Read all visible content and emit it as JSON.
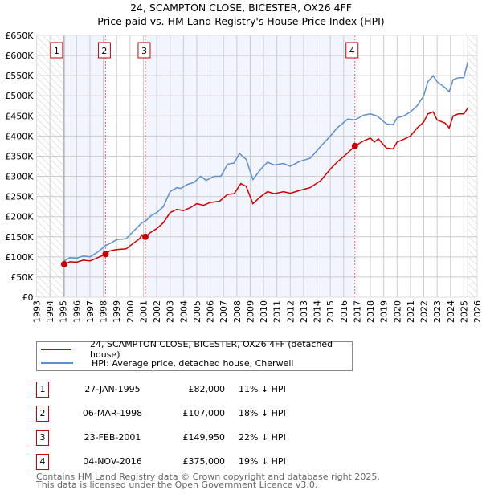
{
  "title": "24, SCAMPTON CLOSE, BICESTER, OX26 4FF",
  "subtitle": "Price paid vs. HM Land Registry's House Price Index (HPI)",
  "chart_data": {
    "type": "line",
    "title": "24, SCAMPTON CLOSE, BICESTER, OX26 4FF",
    "subtitle": "Price paid vs. HM Land Registry's House Price Index (HPI)",
    "xlim": [
      1993,
      2026
    ],
    "ylim": [
      0,
      650000
    ],
    "grid": true,
    "x_ticks": [
      "1993",
      "1994",
      "1995",
      "1996",
      "1997",
      "1998",
      "1999",
      "2000",
      "2001",
      "2002",
      "2003",
      "2004",
      "2005",
      "2006",
      "2007",
      "2008",
      "2009",
      "2010",
      "2011",
      "2012",
      "2013",
      "2014",
      "2015",
      "2016",
      "2017",
      "2018",
      "2019",
      "2020",
      "2021",
      "2022",
      "2023",
      "2024",
      "2025",
      "2026"
    ],
    "y_ticks": [
      {
        "v": 0,
        "label": "£0"
      },
      {
        "v": 50000,
        "label": "£50K"
      },
      {
        "v": 100000,
        "label": "£100K"
      },
      {
        "v": 150000,
        "label": "£150K"
      },
      {
        "v": 200000,
        "label": "£200K"
      },
      {
        "v": 250000,
        "label": "£250K"
      },
      {
        "v": 300000,
        "label": "£300K"
      },
      {
        "v": 350000,
        "label": "£350K"
      },
      {
        "v": 400000,
        "label": "£400K"
      },
      {
        "v": 450000,
        "label": "£450K"
      },
      {
        "v": 500000,
        "label": "£500K"
      },
      {
        "v": 550000,
        "label": "£550K"
      },
      {
        "v": 600000,
        "label": "£600K"
      },
      {
        "v": 650000,
        "label": "£650K"
      }
    ],
    "data_start": 1995.07,
    "data_end": 2025.3,
    "series": [
      {
        "name": "24, SCAMPTON CLOSE, BICESTER, OX26 4FF (detached house)",
        "color": "#cc0000",
        "x": [
          1995.07,
          1995.5,
          1996,
          1996.5,
          1997,
          1997.5,
          1998.17,
          1998.5,
          1999,
          1999.7,
          2000.3,
          2000.7,
          2000.9,
          2001.15,
          2001.5,
          2002,
          2002.5,
          2003,
          2003.5,
          2004,
          2004.5,
          2005,
          2005.5,
          2006,
          2006.7,
          2007.3,
          2007.8,
          2008.3,
          2008.7,
          2009.2,
          2009.8,
          2010.3,
          2010.8,
          2011.5,
          2012,
          2012.7,
          2013.5,
          2014.3,
          2015,
          2015.5,
          2016.2,
          2016.84,
          2017.5,
          2018,
          2018.3,
          2018.6,
          2019.2,
          2019.7,
          2020,
          2020.5,
          2021,
          2021.5,
          2022,
          2022.3,
          2022.7,
          2023,
          2023.6,
          2023.9,
          2024.2,
          2024.6,
          2025,
          2025.3
        ],
        "y": [
          82000,
          88000,
          87000,
          92000,
          90000,
          97000,
          107000,
          115000,
          118000,
          120000,
          135000,
          145000,
          155000,
          149950,
          160000,
          170000,
          185000,
          210000,
          218000,
          215000,
          222000,
          232000,
          228000,
          235000,
          238000,
          255000,
          257000,
          282000,
          275000,
          232000,
          250000,
          262000,
          257000,
          262000,
          258000,
          265000,
          272000,
          290000,
          318000,
          335000,
          355000,
          375000,
          388000,
          395000,
          385000,
          393000,
          370000,
          368000,
          385000,
          392000,
          400000,
          420000,
          435000,
          455000,
          460000,
          440000,
          432000,
          420000,
          450000,
          455000,
          455000,
          470000
        ]
      },
      {
        "name": "HPI: Average price, detached house, Cherwell",
        "color": "#5b8fd0",
        "x": [
          1995.07,
          1995.5,
          1996,
          1996.5,
          1997,
          1997.5,
          1998.17,
          1998.6,
          1999,
          1999.7,
          2000.3,
          2000.9,
          2001.2,
          2001.6,
          2002,
          2002.5,
          2003,
          2003.5,
          2003.8,
          2004.3,
          2004.8,
          2005.3,
          2005.7,
          2006.3,
          2006.8,
          2007.3,
          2007.8,
          2008.2,
          2008.7,
          2009.2,
          2009.8,
          2010.3,
          2010.8,
          2011.5,
          2012,
          2012.7,
          2013.5,
          2014.3,
          2015,
          2015.5,
          2016.3,
          2016.84,
          2017.5,
          2018,
          2018.5,
          2019.2,
          2019.7,
          2020,
          2020.5,
          2021,
          2021.5,
          2022,
          2022.3,
          2022.7,
          2023,
          2023.6,
          2023.9,
          2024.2,
          2024.6,
          2025,
          2025.3
        ],
        "y": [
          90000,
          98000,
          97000,
          102000,
          100000,
          110000,
          128000,
          135000,
          143000,
          145000,
          165000,
          185000,
          190000,
          203000,
          210000,
          225000,
          262000,
          272000,
          270000,
          280000,
          285000,
          300000,
          290000,
          300000,
          300000,
          330000,
          333000,
          357000,
          342000,
          292000,
          318000,
          335000,
          328000,
          332000,
          325000,
          337000,
          345000,
          375000,
          400000,
          420000,
          442000,
          440000,
          452000,
          455000,
          450000,
          430000,
          428000,
          445000,
          450000,
          460000,
          475000,
          500000,
          535000,
          550000,
          535000,
          520000,
          510000,
          540000,
          545000,
          545000,
          585000
        ]
      }
    ],
    "sales": [
      {
        "id": "1",
        "x": 1995.07,
        "price": 82000,
        "date": "27-JAN-1995",
        "price_label": "£82,000",
        "hpi": "11% ↓ HPI"
      },
      {
        "id": "2",
        "x": 1998.17,
        "price": 107000,
        "date": "06-MAR-1998",
        "price_label": "£107,000",
        "hpi": "18% ↓ HPI"
      },
      {
        "id": "3",
        "x": 2001.15,
        "price": 149950,
        "date": "23-FEB-2001",
        "price_label": "£149,950",
        "hpi": "22% ↓ HPI"
      },
      {
        "id": "4",
        "x": 2016.84,
        "price": 375000,
        "date": "04-NOV-2016",
        "price_label": "£375,000",
        "hpi": "19% ↓ HPI"
      }
    ]
  },
  "legend": {
    "property": "24, SCAMPTON CLOSE, BICESTER, OX26 4FF (detached house)",
    "hpi": "HPI: Average price, detached house, Cherwell"
  },
  "footer": {
    "line1": "Contains HM Land Registry data © Crown copyright and database right 2025.",
    "line2": "This data is licensed under the Open Government Licence v3.0."
  }
}
